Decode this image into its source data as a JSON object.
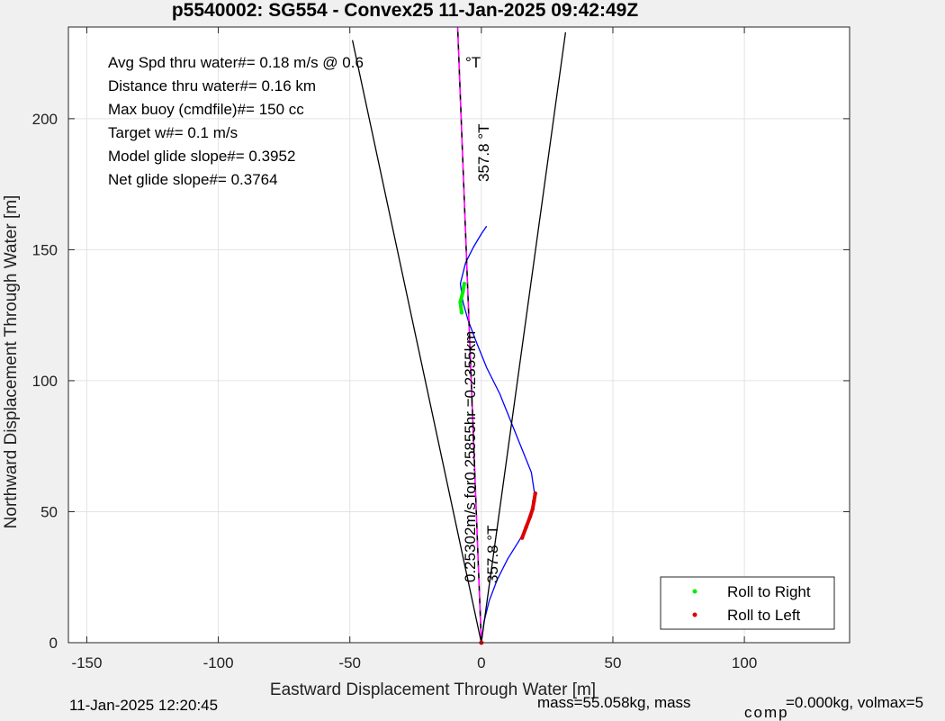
{
  "chart_data": {
    "type": "line",
    "title": "p5540002: SG554 - Convex25 11-Jan-2025 09:42:49Z",
    "xlabel": "Eastward Displacement Through Water [m]",
    "ylabel": "Northward Displacement Through Water [m]",
    "xlim": [
      -157,
      140
    ],
    "ylim": [
      0,
      235
    ],
    "xticks": [
      -150,
      -100,
      -50,
      0,
      50,
      100
    ],
    "yticks": [
      0,
      50,
      100,
      150,
      200
    ],
    "grid": true,
    "legend_position": "bottom-right",
    "annotations": {
      "avg_speed": "Avg Spd thru water#=  0.18 m/s @   0.6",
      "avg_speed_unit": "°T",
      "distance": "Distance thru water#=  0.16 km",
      "max_buoy": "Max buoy (cmdfile)#= 150 cc",
      "target_w": "Target w#= 0.1 m/s",
      "model_glide": "Model glide slope#= 0.3952",
      "net_glide": "Net glide slope#= 0.3764",
      "heading_top": "357.8 °T",
      "heading_bottom": "357.8 °T",
      "speed_note": "0.25302m/s for0.25855hr =0.2355km"
    },
    "footer": {
      "date": "11-Jan-2025 12:20:45",
      "mass_left": "mass=55.058kg, mass",
      "mass_sub": "comp",
      "mass_right": "=0.000kg, volmax=5"
    },
    "legend": [
      {
        "label": "Roll to Right",
        "color": "#00ee00"
      },
      {
        "label": "Roll to Left",
        "color": "#dd0000"
      }
    ],
    "series": [
      {
        "key": "track",
        "color": "#0000ff",
        "x": [
          0,
          1,
          3,
          6,
          10,
          15,
          19,
          20.5,
          19,
          15,
          11,
          7,
          2,
          -2,
          -5,
          -7,
          -8,
          -6,
          -3,
          0,
          2
        ],
        "y": [
          0,
          8,
          16,
          24,
          32,
          40,
          48,
          55,
          65,
          75,
          85,
          95,
          105,
          115,
          123,
          130,
          137,
          145,
          151,
          156,
          159
        ]
      },
      {
        "key": "fan_left",
        "color": "#000000",
        "x": [
          0,
          -49
        ],
        "y": [
          0,
          230
        ]
      },
      {
        "key": "fan_right",
        "color": "#000000",
        "x": [
          0,
          32
        ],
        "y": [
          0,
          233
        ]
      },
      {
        "key": "heading_dashed",
        "color": "#000000",
        "x": [
          0,
          -9
        ],
        "y": [
          0,
          235
        ]
      },
      {
        "key": "heading_magenta",
        "color": "#ff00ff",
        "x": [
          0,
          -9
        ],
        "y": [
          0,
          235
        ]
      },
      {
        "key": "roll_right",
        "color": "#00ee00",
        "x": [
          -7.5,
          -8,
          -7,
          -6.5
        ],
        "y": [
          126,
          130,
          134,
          137
        ]
      },
      {
        "key": "roll_left",
        "color": "#dd0000",
        "x": [
          15.5,
          17,
          18.5,
          19.5,
          20,
          20.5
        ],
        "y": [
          40,
          44,
          48,
          51,
          54,
          57
        ]
      }
    ]
  }
}
